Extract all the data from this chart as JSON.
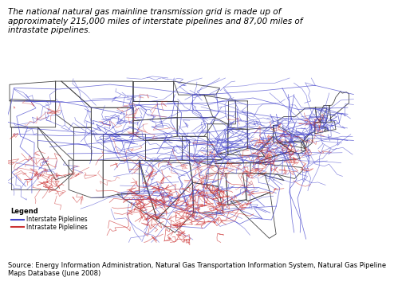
{
  "title_line1": "The national natural gas mainline transmission grid is made up of",
  "title_line2": "approximately 215,000 miles of interstate pipelines and 87,00 miles of",
  "title_line3": "intrastate pipelines.",
  "title_fontsize": 7.5,
  "legend_title": "Legend",
  "legend_interstate": "Interstate Piplelines",
  "legend_intrastate": "Intrastate Piplelines",
  "interstate_color": "#4444cc",
  "intrastate_color": "#cc3333",
  "source_text": "Source: Energy Information Administration, Natural Gas Transportation Information System, Natural Gas Pipeline\nMaps Database (June 2008)",
  "source_fontsize": 6.0,
  "background_color": "#ffffff",
  "state_border_color": "#444444",
  "state_border_lw": 0.6,
  "seed": 42,
  "us_xlim": [
    -125,
    -66
  ],
  "us_ylim": [
    24,
    50
  ]
}
